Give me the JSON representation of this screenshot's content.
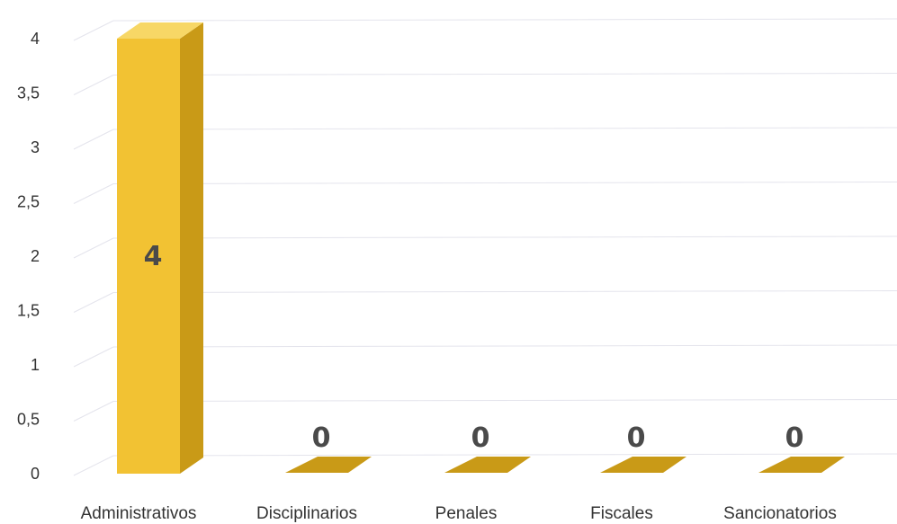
{
  "chart_data": {
    "type": "bar",
    "categories": [
      "Administrativos",
      "Disciplinarios",
      "Penales",
      "Fiscales",
      "Sancionatorios"
    ],
    "values": [
      4,
      0,
      0,
      0,
      0
    ],
    "data_labels": [
      "4",
      "0",
      "0",
      "0",
      "0"
    ],
    "y_ticks": [
      "0",
      "0,5",
      "1",
      "1,5",
      "2",
      "2,5",
      "3",
      "3,5",
      "4"
    ],
    "ylim": [
      0,
      4
    ],
    "grid": true,
    "bar_color": "#f2c233",
    "bar_side_color": "#c99a17",
    "bar_top_color": "#f7d766",
    "grid_color": "#e4e4ec"
  }
}
